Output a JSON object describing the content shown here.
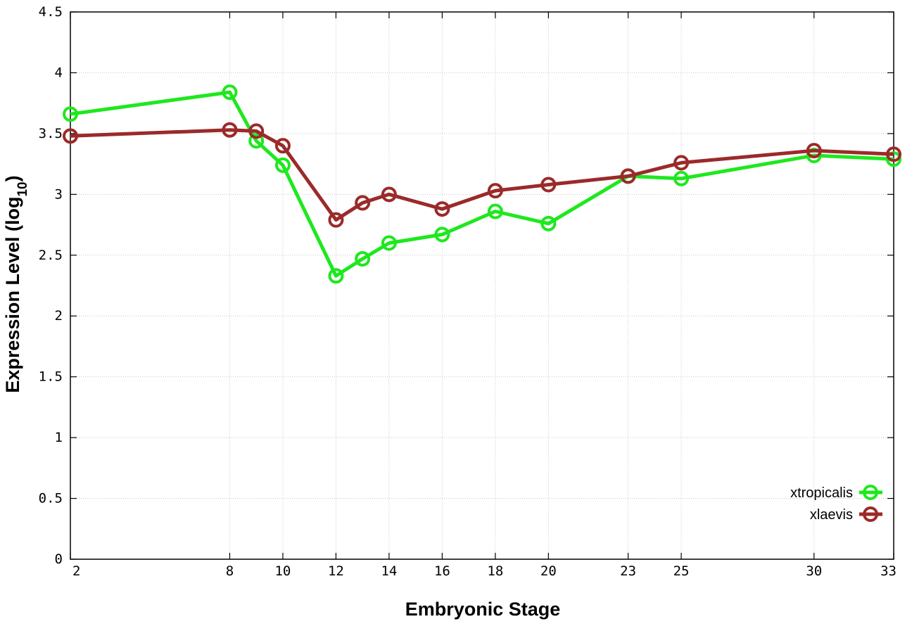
{
  "chart_data": {
    "type": "line",
    "xlabel": "Embryonic Stage",
    "ylabel": "Expression Level (log",
    "ylabel_sub": "10",
    "ylabel_end": ")",
    "ylim": [
      0,
      4.5
    ],
    "xlim": [
      2,
      33
    ],
    "x_ticks": [
      2,
      8,
      10,
      12,
      14,
      16,
      18,
      20,
      23,
      25,
      30,
      33
    ],
    "y_ticks": [
      "0",
      "0.5",
      "1",
      "1.5",
      "2",
      "2.5",
      "3",
      "3.5",
      "4",
      "4.5"
    ],
    "grid": true,
    "legend_position": "bottom-right",
    "series": [
      {
        "name": "xtropicalis",
        "color": "#1ee81e",
        "x": [
          2,
          8,
          9,
          10,
          12,
          13,
          14,
          16,
          18,
          20,
          23,
          25,
          30,
          33
        ],
        "y": [
          3.66,
          3.84,
          3.44,
          3.24,
          2.33,
          2.47,
          2.6,
          2.67,
          2.86,
          2.76,
          3.15,
          3.13,
          3.32,
          3.29
        ]
      },
      {
        "name": "xlaevis",
        "color": "#9b2a2a",
        "x": [
          2,
          8,
          9,
          10,
          12,
          13,
          14,
          16,
          18,
          20,
          23,
          25,
          30,
          33
        ],
        "y": [
          3.48,
          3.53,
          3.52,
          3.4,
          2.79,
          2.93,
          3.0,
          2.88,
          3.03,
          3.08,
          3.15,
          3.26,
          3.36,
          3.33
        ]
      }
    ]
  }
}
